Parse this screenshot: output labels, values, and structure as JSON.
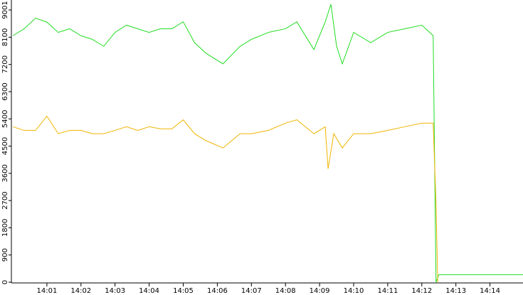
{
  "chart_data": {
    "type": "line",
    "xlim": [
      "14:00",
      "14:15"
    ],
    "xticks": [
      "14:01",
      "14:02",
      "14:03",
      "14:04",
      "14:05",
      "14:06",
      "14:07",
      "14:08",
      "14:09",
      "14:10",
      "14:11",
      "14:12",
      "14:13",
      "14:14"
    ],
    "ylim": [
      0,
      9190
    ],
    "yticks": [
      0,
      900,
      1800,
      2700,
      3600,
      4500,
      5400,
      6300,
      7200,
      8100,
      9001
    ],
    "series": [
      {
        "name": "green",
        "color": "#22dd22",
        "x": [
          "14:00:00",
          "14:00:20",
          "14:00:40",
          "14:01:00",
          "14:01:20",
          "14:01:40",
          "14:02:00",
          "14:02:20",
          "14:02:40",
          "14:03:00",
          "14:03:20",
          "14:03:40",
          "14:04:00",
          "14:04:20",
          "14:04:40",
          "14:05:00",
          "14:05:20",
          "14:05:40",
          "14:06:10",
          "14:06:40",
          "14:07:00",
          "14:07:30",
          "14:08:00",
          "14:08:20",
          "14:08:50",
          "14:09:10",
          "14:09:20",
          "14:09:30",
          "14:09:40",
          "14:10:00",
          "14:10:30",
          "14:11:00",
          "14:11:30",
          "14:12:00",
          "14:12:20",
          "14:12:25",
          "14:12:30",
          "14:15:00"
        ],
        "values": [
          8150,
          8380,
          8730,
          8600,
          8260,
          8380,
          8150,
          8030,
          7800,
          8260,
          8500,
          8380,
          8260,
          8380,
          8380,
          8610,
          7920,
          7570,
          7220,
          7800,
          8030,
          8260,
          8380,
          8610,
          7690,
          8610,
          9190,
          7800,
          7220,
          8260,
          7920,
          8260,
          8380,
          8500,
          8150,
          0,
          250,
          250
        ]
      },
      {
        "name": "orange",
        "color": "#f0b400",
        "x": [
          "14:00:00",
          "14:00:20",
          "14:00:40",
          "14:01:00",
          "14:01:20",
          "14:01:40",
          "14:02:00",
          "14:02:20",
          "14:02:40",
          "14:03:00",
          "14:03:20",
          "14:03:40",
          "14:04:00",
          "14:04:20",
          "14:04:40",
          "14:05:00",
          "14:05:20",
          "14:05:40",
          "14:06:10",
          "14:06:40",
          "14:07:00",
          "14:07:30",
          "14:08:00",
          "14:08:20",
          "14:08:50",
          "14:09:10",
          "14:09:15",
          "14:09:25",
          "14:09:40",
          "14:10:00",
          "14:10:30",
          "14:11:00",
          "14:11:30",
          "14:12:00",
          "14:12:20",
          "14:12:25",
          "14:12:28"
        ],
        "values": [
          5140,
          5020,
          5020,
          5490,
          4910,
          5020,
          5020,
          4910,
          4910,
          5020,
          5140,
          5020,
          5140,
          5070,
          5070,
          5370,
          4910,
          4680,
          4440,
          4910,
          4910,
          5020,
          5260,
          5370,
          4910,
          5140,
          3750,
          4910,
          4440,
          4910,
          4910,
          5020,
          5140,
          5260,
          5260,
          2590,
          0
        ]
      }
    ]
  }
}
